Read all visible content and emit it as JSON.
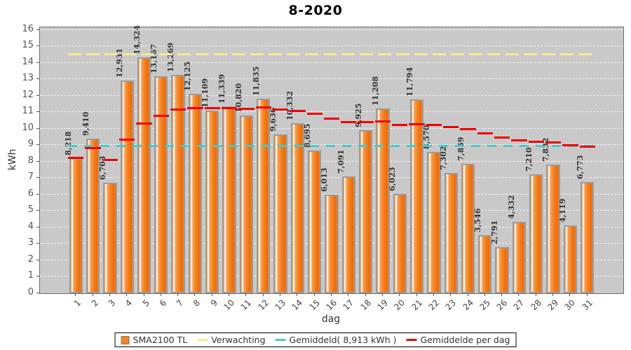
{
  "title": "8-2020",
  "chart_data": {
    "type": "bar",
    "title": "8-2020",
    "xlabel": "dag",
    "ylabel": "kWh",
    "ylim": [
      0,
      16
    ],
    "yticks": [
      0,
      1,
      2,
      3,
      4,
      5,
      6,
      7,
      8,
      9,
      10,
      11,
      12,
      13,
      14,
      15,
      16
    ],
    "grid": "horizontal-dashed-white",
    "legend_position": "bottom",
    "categories": [
      "1",
      "2",
      "3",
      "4",
      "5",
      "6",
      "7",
      "8",
      "9",
      "10",
      "11",
      "12",
      "13",
      "14",
      "15",
      "16",
      "17",
      "18",
      "19",
      "20",
      "21",
      "22",
      "23",
      "24",
      "25",
      "26",
      "27",
      "28",
      "29",
      "30",
      "31"
    ],
    "series": [
      {
        "name": "SMA2100 TL",
        "type": "bar",
        "values": [
          8.218,
          9.41,
          6.703,
          12.931,
          14.324,
          13.167,
          13.269,
          12.125,
          11.109,
          11.339,
          10.82,
          11.835,
          9.636,
          10.332,
          8.695,
          6.013,
          7.091,
          9.925,
          11.208,
          6.023,
          11.794,
          8.57,
          7.302,
          7.859,
          3.546,
          2.791,
          4.332,
          7.21,
          7.832,
          4.119,
          6.773
        ],
        "labels": [
          "8,218",
          "9,410",
          "6,703",
          "12,931",
          "14,324",
          "13,167",
          "13,269",
          "12,125",
          "11,109",
          "11,339",
          "10,820",
          "11,835",
          "9,636",
          "10,332",
          "8,695",
          "6,013",
          "7,091",
          "9,925",
          "11,208",
          "6,023",
          "11,794",
          "8,570",
          "7,302",
          "7,859",
          "3,546",
          "2,791",
          "4,332",
          "7,210",
          "7,832",
          "4,119",
          "6,773"
        ]
      },
      {
        "name": "Verwachting",
        "type": "dashed-line-constant",
        "value": 14.5
      },
      {
        "name": "Gemiddeld( 8,913 kWh )",
        "type": "dashed-line-constant",
        "value": 8.913
      },
      {
        "name": "Gemiddelde per dag",
        "type": "step-line-dashed",
        "values": [
          8.218,
          8.814,
          8.11,
          9.316,
          10.317,
          10.792,
          11.146,
          11.268,
          11.251,
          11.26,
          11.22,
          11.271,
          11.145,
          11.087,
          10.928,
          10.62,
          10.413,
          10.386,
          10.429,
          10.209,
          10.284,
          10.206,
          10.08,
          9.987,
          9.73,
          9.463,
          9.273,
          9.199,
          9.152,
          8.984,
          8.913
        ]
      }
    ]
  },
  "legend": {
    "items": [
      {
        "label": "SMA2100 TL",
        "swatch": "orange-square"
      },
      {
        "label": "Verwachting",
        "swatch": "yellow-dash"
      },
      {
        "label": "Gemiddeld( 8,913 kWh )",
        "swatch": "cyan-dash"
      },
      {
        "label": "Gemiddelde per dag",
        "swatch": "red-dash"
      }
    ]
  },
  "colors": {
    "plot_background": "#c9c9c9",
    "bar_fill": "#f4831f",
    "bar_border": "#9b9b9b",
    "verwachting_line": "#f0ee8e",
    "gemiddeld_line": "#4cc8c8",
    "gemiddelde_per_dag_line": "#ee0000",
    "gridline": "#ffffff",
    "axis_text": "#555555",
    "bar_label_text": "#333333",
    "title_text": "#000000"
  }
}
